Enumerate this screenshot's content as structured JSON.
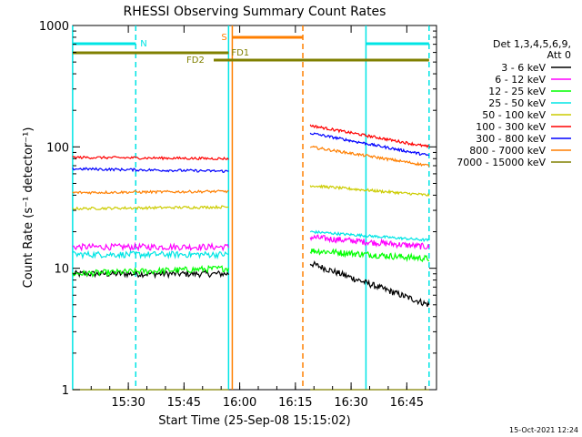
{
  "chart_data": {
    "type": "line",
    "title": "RHESSI Observing Summary Count Rates",
    "xlabel": "Start Time (25-Sep-08 15:15:02)",
    "ylabel": "Count Rate (s⁻¹ detector⁻¹)",
    "y_scale": "log",
    "ylim": [
      1,
      1000
    ],
    "x_range": [
      "15:15:02",
      "16:53:00"
    ],
    "x_ticks": [
      "15:30",
      "15:45",
      "16:00",
      "16:15",
      "16:30",
      "16:45"
    ],
    "y_ticks": [
      "1",
      "10",
      "100",
      "1000"
    ],
    "grid": false,
    "legend_position": "right",
    "legend_header": [
      "Det 1,3,4,5,6,9,",
      "Att 0"
    ],
    "timestamp": "15-Oct-2021 12:24",
    "flags": [
      {
        "label": "N",
        "color": "#00e5e5",
        "segments": [
          [
            "15:15",
            "15:32"
          ],
          [
            "16:34",
            "16:51"
          ]
        ]
      },
      {
        "label": "S",
        "color": "#ff7f00",
        "segments": [
          [
            "15:58",
            "16:17"
          ]
        ]
      },
      {
        "label": "FD1",
        "color": "#808000",
        "segments": [
          [
            "15:15",
            "15:57"
          ]
        ]
      },
      {
        "label": "FD2",
        "color": "#808000",
        "segments": [
          [
            "15:53",
            "16:51"
          ]
        ]
      }
    ],
    "vlines": [
      {
        "time": "15:15",
        "color": "#00e5e5",
        "style": "solid"
      },
      {
        "time": "15:32",
        "color": "#00e5e5",
        "style": "dashed"
      },
      {
        "time": "15:57",
        "color": "#00e5e5",
        "style": "solid"
      },
      {
        "time": "15:58",
        "color": "#ff7f00",
        "style": "solid"
      },
      {
        "time": "16:17",
        "color": "#ff7f00",
        "style": "dashed"
      },
      {
        "time": "16:34",
        "color": "#00e5e5",
        "style": "solid"
      },
      {
        "time": "16:51",
        "color": "#00e5e5",
        "style": "dashed"
      }
    ],
    "segments": [
      [
        "15:15",
        "15:57"
      ],
      [
        "16:19",
        "16:51"
      ]
    ],
    "series": [
      {
        "name": "3 - 6 keV",
        "color": "#000000",
        "values": [
          [
            9,
            9
          ],
          [
            11,
            5
          ]
        ]
      },
      {
        "name": "6 - 12 keV",
        "color": "#ff00ff",
        "values": [
          [
            15,
            15
          ],
          [
            18,
            15
          ]
        ]
      },
      {
        "name": "12 - 25 keV",
        "color": "#00ff00",
        "values": [
          [
            9,
            10
          ],
          [
            14,
            12
          ]
        ]
      },
      {
        "name": "25 - 50 keV",
        "color": "#00e5e5",
        "values": [
          [
            13,
            13
          ],
          [
            20,
            17
          ]
        ]
      },
      {
        "name": "50 - 100 keV",
        "color": "#cccc00",
        "values": [
          [
            31,
            32
          ],
          [
            48,
            40
          ]
        ]
      },
      {
        "name": "100 - 300 keV",
        "color": "#ff0000",
        "values": [
          [
            82,
            80
          ],
          [
            150,
            100
          ]
        ]
      },
      {
        "name": "300 - 800 keV",
        "color": "#0000ff",
        "values": [
          [
            66,
            63
          ],
          [
            130,
            85
          ]
        ]
      },
      {
        "name": "800 - 7000 keV",
        "color": "#ff7f00",
        "values": [
          [
            42,
            43
          ],
          [
            100,
            70
          ]
        ]
      },
      {
        "name": "7000 - 15000 keV",
        "color": "#808000",
        "values": [
          [
            1.0,
            1.0
          ],
          [
            1.0,
            1.0
          ]
        ]
      }
    ]
  }
}
